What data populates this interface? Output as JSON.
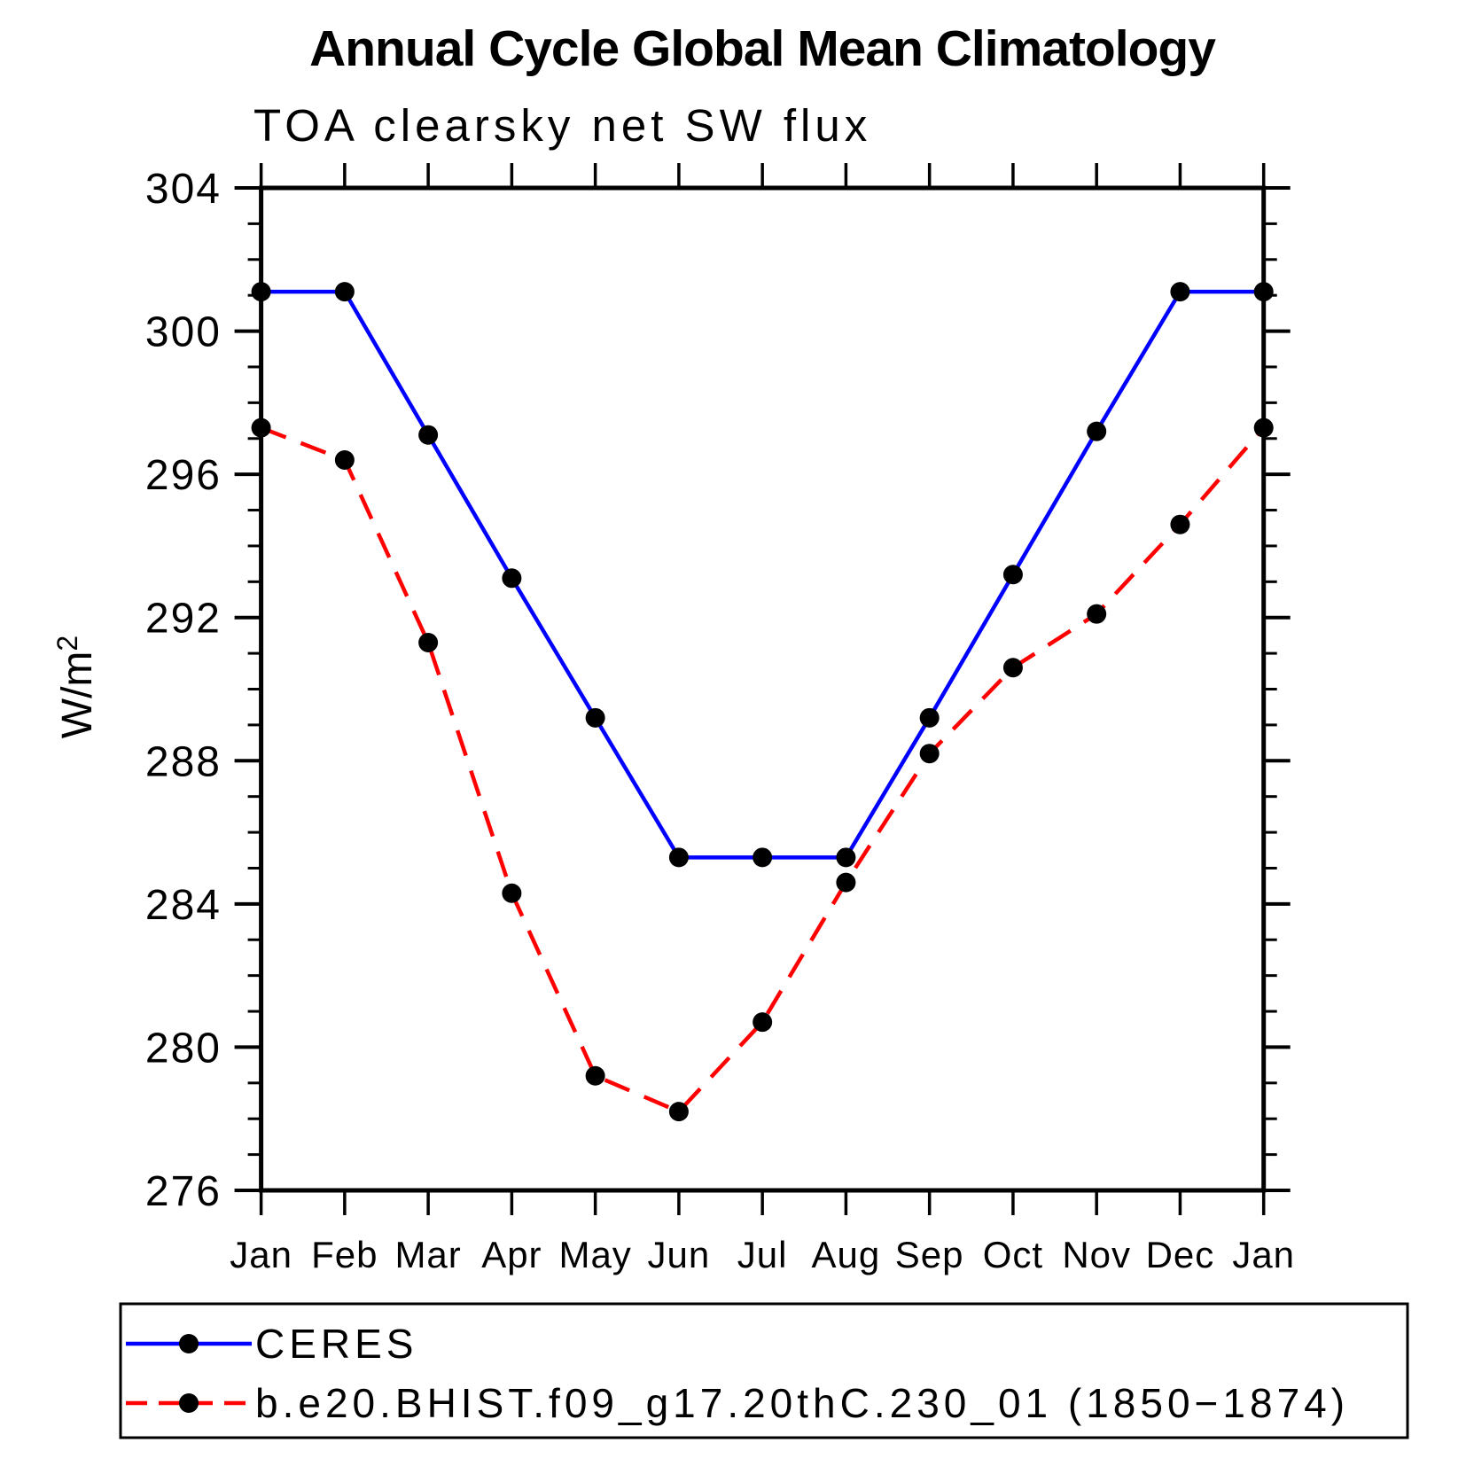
{
  "header": {
    "title": "Annual Cycle Global Mean Climatology",
    "subtitle": "TOA clearsky net SW flux"
  },
  "chart_data": {
    "type": "line",
    "title": "Annual Cycle Global Mean Climatology",
    "subtitle": "TOA clearsky net SW flux",
    "xlabel": "",
    "ylabel": "W/m²",
    "ylim": [
      276,
      304
    ],
    "y_major_ticks": [
      304,
      300,
      296,
      292,
      288,
      284,
      280,
      276
    ],
    "y_minor_step": 1,
    "grid": false,
    "legend_position": "bottom-left-box",
    "axis_color": "#000000",
    "categories": [
      "Jan",
      "Feb",
      "Mar",
      "Apr",
      "May",
      "Jun",
      "Jul",
      "Aug",
      "Sep",
      "Oct",
      "Nov",
      "Dec",
      "Jan"
    ],
    "series": [
      {
        "name": "CERES",
        "color": "#0000FF",
        "line_style": "solid",
        "marker": "circle",
        "marker_color": "#000000",
        "values": [
          301.1,
          301.1,
          297.1,
          293.1,
          289.2,
          285.3,
          285.3,
          285.3,
          289.2,
          293.2,
          297.2,
          301.1,
          301.1
        ]
      },
      {
        "name": "b.e20.BHIST.f09_g17.20thC.230_01 (1850−1874)",
        "color": "#FF0000",
        "line_style": "dashed",
        "marker": "circle",
        "marker_color": "#000000",
        "values": [
          297.3,
          296.4,
          291.3,
          284.3,
          279.2,
          278.2,
          280.7,
          284.6,
          288.2,
          290.6,
          292.1,
          294.6,
          297.3
        ]
      }
    ]
  }
}
